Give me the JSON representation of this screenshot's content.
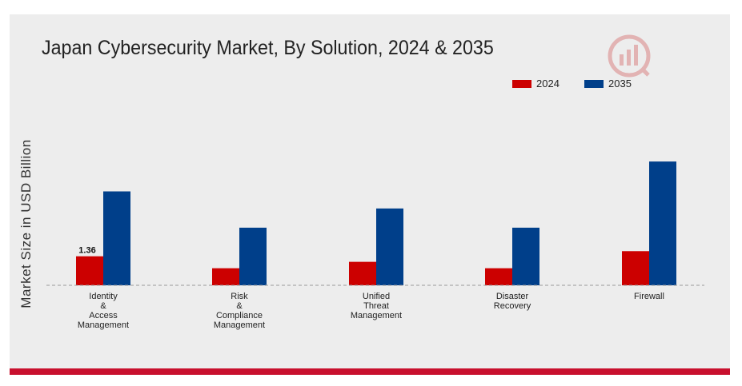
{
  "title": "Japan Cybersecurity Market, By Solution, 2024 & 2035",
  "colors": {
    "s2024": "#cc0000",
    "s2035": "#003f8a",
    "accent": "#c8102e"
  },
  "chart_data": {
    "type": "bar",
    "title": "Japan Cybersecurity Market, By Solution, 2024 & 2035",
    "xlabel": "",
    "ylabel": "Market Size in USD Billion",
    "categories": [
      [
        "Identity",
        "&",
        "Access",
        "Management"
      ],
      [
        "Risk",
        "&",
        "Compliance",
        "Management"
      ],
      [
        "Unified",
        "Threat",
        "Management"
      ],
      [
        "Disaster",
        "Recovery"
      ],
      [
        "Firewall"
      ]
    ],
    "series": [
      {
        "name": "2024",
        "color": "#cc0000",
        "values": [
          1.36,
          0.8,
          1.1,
          0.8,
          1.6
        ]
      },
      {
        "name": "2035",
        "color": "#003f8a",
        "values": [
          4.4,
          2.7,
          3.6,
          2.7,
          5.8
        ]
      }
    ],
    "data_labels": [
      {
        "series": 0,
        "index": 0,
        "text": "1.36"
      }
    ],
    "ylim": [
      0,
      8.5
    ],
    "legend_position": "top-right",
    "grid": false
  }
}
